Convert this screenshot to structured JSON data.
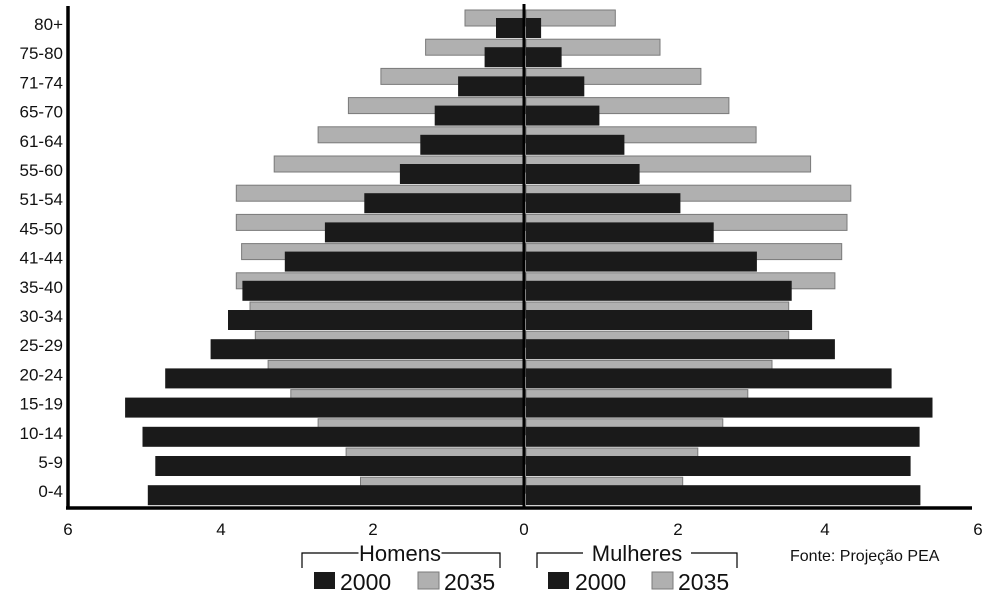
{
  "chart_data": {
    "type": "bar",
    "orientation": "horizontal",
    "layout": "population-pyramid",
    "categories": [
      "80+",
      "75-80",
      "71-74",
      "65-70",
      "61-64",
      "55-60",
      "51-54",
      "45-50",
      "41-44",
      "35-40",
      "30-34",
      "25-29",
      "20-24",
      "15-19",
      "10-14",
      "5-9",
      "0-4"
    ],
    "xaxis_ticks": [
      "6",
      "4",
      "2",
      "0",
      "2",
      "4",
      "6"
    ],
    "xlim": [
      -6,
      6
    ],
    "groups": [
      {
        "name": "Homens",
        "side": "left",
        "series": [
          {
            "name": "2000",
            "color": "#1a1a1a",
            "values": [
              0.37,
              0.52,
              0.87,
              1.18,
              1.37,
              1.64,
              2.11,
              2.63,
              3.16,
              3.72,
              3.91,
              4.14,
              4.74,
              5.27,
              5.04,
              4.87,
              4.97
            ]
          },
          {
            "name": "2035",
            "color": "#b0b0b0",
            "values": [
              0.78,
              1.3,
              1.89,
              2.32,
              2.72,
              3.3,
              3.8,
              3.8,
              3.73,
              3.8,
              3.62,
              3.55,
              3.38,
              3.08,
              2.72,
              2.35,
              2.16
            ]
          }
        ]
      },
      {
        "name": "Mulheres",
        "side": "right",
        "series": [
          {
            "name": "2000",
            "color": "#1a1a1a",
            "values": [
              0.2,
              0.47,
              0.77,
              0.97,
              1.3,
              1.5,
              2.04,
              2.48,
              3.05,
              3.51,
              3.78,
              4.08,
              4.83,
              5.37,
              5.2,
              5.08,
              5.21
            ]
          },
          {
            "name": "2035",
            "color": "#b0b0b0",
            "values": [
              1.18,
              1.77,
              2.31,
              2.68,
              3.04,
              3.76,
              4.29,
              4.24,
              4.17,
              4.08,
              3.47,
              3.47,
              3.25,
              2.93,
              2.6,
              2.27,
              2.07
            ]
          }
        ]
      }
    ],
    "source": "Fonte: Projeção PEA"
  }
}
